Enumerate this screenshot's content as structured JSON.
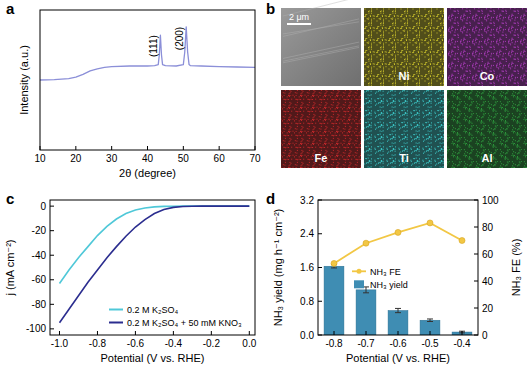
{
  "chart_data": [
    {
      "type": "line",
      "label": "a",
      "x_label": "2θ (degree)",
      "y_label": "Intensity (a.u.)",
      "xlim": [
        10,
        70
      ],
      "xticks": [
        10,
        20,
        30,
        40,
        50,
        60,
        70
      ],
      "ylim": [
        0,
        100
      ],
      "tick_labels": "x",
      "x": [
        10,
        14,
        18,
        20,
        22,
        24,
        26,
        28,
        30,
        35,
        40,
        42,
        43,
        43.3,
        43.6,
        43.9,
        44.2,
        45,
        48,
        50,
        50.4,
        50.8,
        51.2,
        51.6,
        52,
        55,
        60,
        65,
        70
      ],
      "series": [
        {
          "color": "#8b8fd8",
          "values": [
            50,
            50.3,
            51,
            52,
            54,
            56.5,
            58,
            59,
            59.5,
            60,
            60,
            60.2,
            61,
            68,
            82,
            68,
            61,
            60.2,
            60,
            61,
            70,
            88,
            70,
            61,
            60.2,
            60,
            59.6,
            59.3,
            59
          ]
        }
      ],
      "annotations": [
        {
          "text": "(111)",
          "x": 43.6,
          "y": 82
        },
        {
          "text": "(200)",
          "x": 50.8,
          "y": 88
        }
      ]
    },
    {
      "type": "line",
      "label": "c",
      "x_label": "Potential (V vs. RHE)",
      "y_label": "j (mA cm⁻²)",
      "xlim": [
        -1.05,
        0.03
      ],
      "xticks": [
        {
          "value": -1,
          "label": "-1.0"
        },
        -0.8,
        -0.6,
        -0.4,
        -0.2,
        {
          "value": 0,
          "label": "0.0"
        }
      ],
      "ylim": [
        -105,
        5
      ],
      "yticks": [
        -100,
        -80,
        -60,
        -40,
        -20,
        0
      ],
      "legend": "lower right",
      "x": [
        -1.0,
        -0.95,
        -0.9,
        -0.85,
        -0.8,
        -0.75,
        -0.7,
        -0.65,
        -0.6,
        -0.55,
        -0.5,
        -0.45,
        -0.4,
        -0.35,
        -0.3,
        -0.25,
        -0.2,
        -0.15,
        -0.1,
        -0.05,
        0.0
      ],
      "series": [
        {
          "name": "0.2 M K₂SO₄",
          "color": "#4fc8d8",
          "values": [
            -63,
            -52,
            -42,
            -33,
            -24,
            -16.5,
            -10.5,
            -6,
            -3.2,
            -1.5,
            -0.6,
            -0.2,
            -0.1,
            0,
            0,
            0,
            0,
            0,
            0,
            0,
            0
          ]
        },
        {
          "name": "0.2 M K₂SO₄ + 50 mM KNO₃",
          "color": "#2b2d8f",
          "values": [
            -95,
            -84,
            -73,
            -62,
            -52,
            -42,
            -33,
            -24.5,
            -17,
            -11,
            -6,
            -2.8,
            -1,
            -0.3,
            -0.1,
            0,
            0,
            0,
            0,
            0,
            0
          ]
        }
      ]
    },
    {
      "type": "bar",
      "label": "d",
      "x_label": "Potential (V vs. RHE)",
      "y_label": "NH₃ yield (mg h⁻¹ cm⁻²)",
      "y2_label": "NH₃ FE (%)",
      "categories": [
        "-0.8",
        "-0.7",
        "-0.6",
        "-0.5",
        "-0.4"
      ],
      "ylim": [
        0,
        3.2
      ],
      "yticks": [
        {
          "value": 0,
          "label": "0.0"
        },
        0.8,
        1.6,
        2.4,
        3.2
      ],
      "y2lim": [
        0,
        100
      ],
      "y2ticks": [
        0,
        20,
        40,
        60,
        80,
        100
      ],
      "legend": "center left",
      "series": [
        {
          "name": "NH₃ FE",
          "type": "line",
          "axis": "y2",
          "color": "#f2c744",
          "marker": "circle",
          "values": [
            53,
            68,
            76,
            83,
            70
          ]
        },
        {
          "name": "NH₃ yield",
          "type": "bar",
          "color": "#3f8db3",
          "values": [
            1.63,
            1.07,
            0.58,
            0.35,
            0.07
          ],
          "errors": [
            0.04,
            0.07,
            0.05,
            0.03,
            0.02
          ]
        }
      ]
    }
  ],
  "image_panel": {
    "label": "b",
    "scale_bar": "2 μm",
    "maps": [
      {
        "name": "Ni",
        "color": "#c9c02a"
      },
      {
        "name": "Co",
        "color": "#b03cc0"
      },
      {
        "name": "Fe",
        "color": "#c8282a"
      },
      {
        "name": "Ti",
        "color": "#3cc8c8"
      },
      {
        "name": "Al",
        "color": "#2e9e3e"
      }
    ]
  }
}
